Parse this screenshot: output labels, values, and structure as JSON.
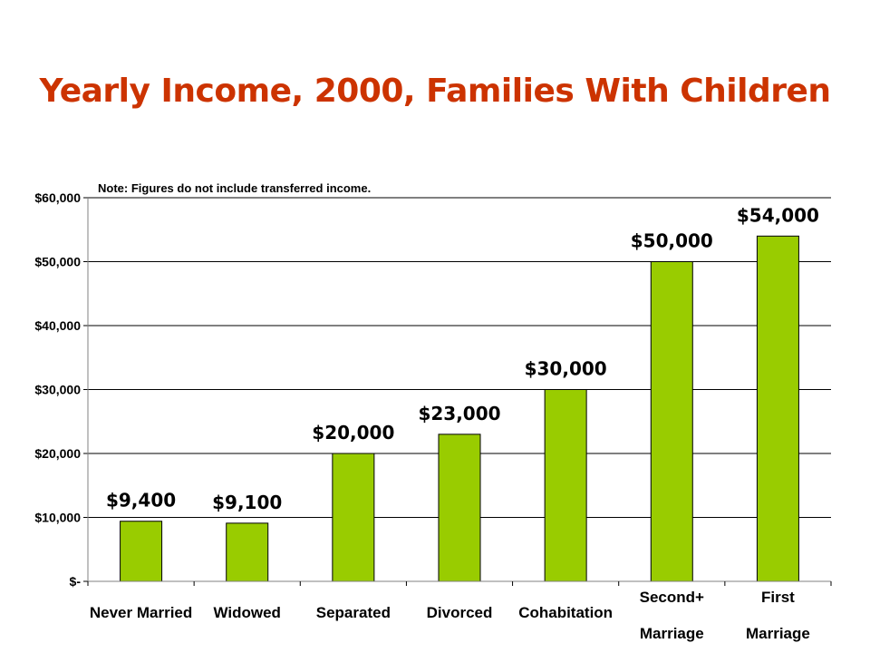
{
  "chart_data": {
    "type": "bar",
    "title": "Yearly Income, 2000,  Families With Children",
    "note": "Note: Figures do not include transferred income.",
    "categories": [
      [
        "Never Married"
      ],
      [
        "Widowed"
      ],
      [
        "Separated"
      ],
      [
        "Divorced"
      ],
      [
        "Cohabitation"
      ],
      [
        "Second+",
        "Marriage"
      ],
      [
        "First",
        "Marriage"
      ]
    ],
    "values": [
      9400,
      9100,
      20000,
      23000,
      30000,
      50000,
      54000
    ],
    "value_labels": [
      "$9,400",
      "$9,100",
      "$20,000",
      "$23,000",
      "$30,000",
      "$50,000",
      "$54,000"
    ],
    "yticks": [
      0,
      10000,
      20000,
      30000,
      40000,
      50000,
      60000
    ],
    "ytick_labels": [
      "$-",
      "$10,000",
      "$20,000",
      "$30,000",
      "$40,000",
      "$50,000",
      "$60,000"
    ],
    "ylim": [
      0,
      60000
    ],
    "grid": true,
    "colors": {
      "bar": "#99cc00",
      "bar_stroke": "#000000",
      "title": "#cc3300",
      "grid": "#000000"
    }
  }
}
